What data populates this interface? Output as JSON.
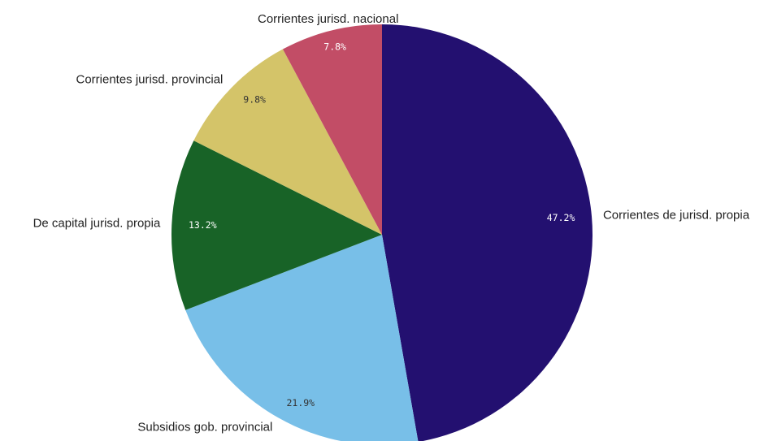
{
  "chart_data": {
    "type": "pie",
    "title": "",
    "legend": "none",
    "start_angle_deg": 0,
    "direction": "clockwise",
    "slices": [
      {
        "label": "Corrientes de jurisd. propia",
        "value": 47.2,
        "display": "47.2%",
        "color": "#231070",
        "text_color": "#ffffff"
      },
      {
        "label": "Subsidios gob. provincial",
        "value": 21.9,
        "display": "21.9%",
        "color": "#78bfe8",
        "text_color": "#333333"
      },
      {
        "label": "De capital jurisd. propia",
        "value": 13.2,
        "display": "13.2%",
        "color": "#186327",
        "text_color": "#ffffff"
      },
      {
        "label": "Corrientes jurisd. provincial",
        "value": 9.8,
        "display": "9.8%",
        "color": "#d4c469",
        "text_color": "#333333"
      },
      {
        "label": "Corrientes jurisd. nacional",
        "value": 7.8,
        "display": "7.8%",
        "color": "#c24d66",
        "text_color": "#ffffff"
      }
    ]
  }
}
